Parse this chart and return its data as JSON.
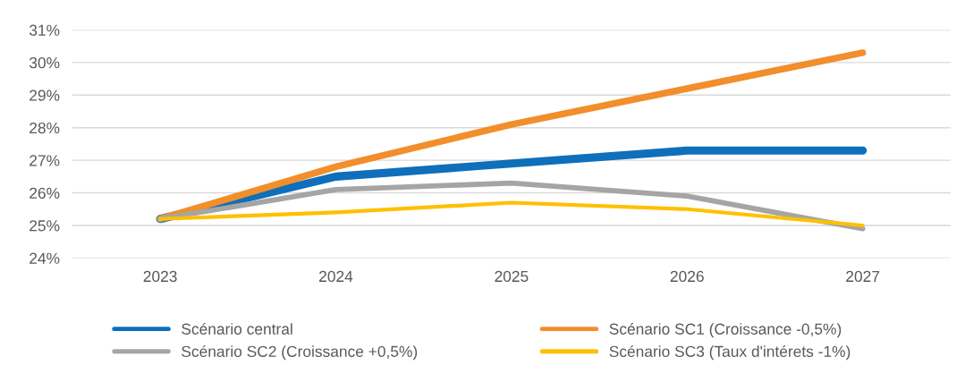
{
  "chart_data": {
    "type": "line",
    "categories": [
      "2023",
      "2024",
      "2025",
      "2026",
      "2027"
    ],
    "series": [
      {
        "name": "Scénario central",
        "color": "#0f6fba",
        "values": [
          25.2,
          26.5,
          26.9,
          27.3,
          27.3
        ]
      },
      {
        "name": "Scénario SC1 (Croissance -0,5%)",
        "color": "#f28e2b",
        "values": [
          25.2,
          26.8,
          28.1,
          29.2,
          30.3
        ]
      },
      {
        "name": "Scénario SC2 (Croissance +0,5%)",
        "color": "#a5a5a5",
        "values": [
          25.2,
          26.1,
          26.3,
          25.9,
          24.9
        ]
      },
      {
        "name": "Scénario SC3 (Taux d'intérets -1%)",
        "color": "#ffc000",
        "values": [
          25.2,
          25.4,
          25.7,
          25.5,
          25.0
        ]
      }
    ],
    "ylim": [
      24,
      31
    ],
    "yticks": [
      {
        "value": 24,
        "label": "24%"
      },
      {
        "value": 25,
        "label": "25%"
      },
      {
        "value": 26,
        "label": "26%"
      },
      {
        "value": 27,
        "label": "27%"
      },
      {
        "value": 28,
        "label": "28%"
      },
      {
        "value": 29,
        "label": "29%"
      },
      {
        "value": 30,
        "label": "30%"
      },
      {
        "value": 31,
        "label": "31%"
      }
    ],
    "grid": "y",
    "legend": "bottom",
    "marker": "none",
    "line_style": "solid"
  }
}
